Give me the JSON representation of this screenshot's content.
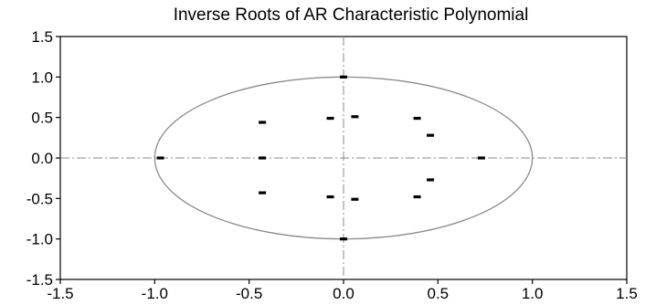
{
  "chart_data": {
    "type": "scatter",
    "title": "Inverse Roots of AR Characteristic Polynomial",
    "xlabel": "",
    "ylabel": "",
    "xlim": [
      -1.5,
      1.5
    ],
    "ylim": [
      -1.5,
      1.5
    ],
    "xticks": [
      "-1.5",
      "-1.0",
      "-0.5",
      "0.0",
      "0.5",
      "1.0",
      "1.5"
    ],
    "yticks": [
      "1.5",
      "1.0",
      "0.5",
      "0.0",
      "-0.5",
      "-1.0",
      "-1.5"
    ],
    "grid": false,
    "legend": "none",
    "reference_lines": {
      "x": 0,
      "y": 0,
      "style": "dash-dot"
    },
    "unit_circle": {
      "radius": 1
    },
    "series": [
      {
        "points": [
          {
            "x": 0.0,
            "y": 1.0
          },
          {
            "x": 0.0,
            "y": -1.0
          },
          {
            "x": -0.97,
            "y": 0.0
          },
          {
            "x": -0.43,
            "y": 0.0
          },
          {
            "x": 0.73,
            "y": 0.0
          },
          {
            "x": -0.43,
            "y": 0.44
          },
          {
            "x": -0.43,
            "y": -0.43
          },
          {
            "x": -0.07,
            "y": 0.49
          },
          {
            "x": 0.06,
            "y": 0.51
          },
          {
            "x": -0.07,
            "y": -0.48
          },
          {
            "x": 0.06,
            "y": -0.51
          },
          {
            "x": 0.39,
            "y": 0.49
          },
          {
            "x": 0.46,
            "y": 0.28
          },
          {
            "x": 0.46,
            "y": -0.27
          },
          {
            "x": 0.39,
            "y": -0.48
          }
        ]
      }
    ],
    "colors": {
      "marks": "#000000",
      "circle": "#8a8a8a",
      "reference": "#8a8a8a",
      "frame": "#000000"
    }
  }
}
